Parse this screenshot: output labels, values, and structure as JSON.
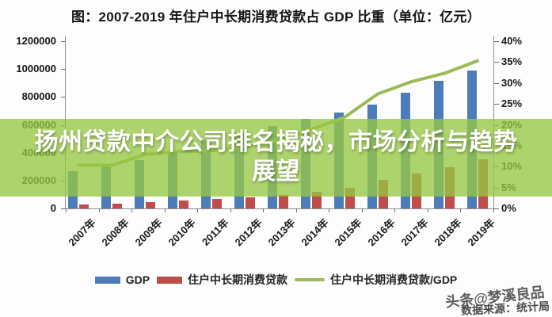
{
  "title": "图：2007-2019 年住户中长期消费贷款占 GDP 比重（单位：亿元）",
  "overlay": {
    "headline": "扬州贷款中介公司排名揭秘，市场分析与趋势展望",
    "lines": [
      "扬州贷款中介公司排名揭秘，市场分析与趋势",
      "展望"
    ],
    "background": "#96c743",
    "text_color": "#ffffff"
  },
  "watermark": "头条@梦溪良品",
  "source": "数据来源：统计局",
  "chart_data": {
    "type": "bar",
    "subtype": "bar-line-combo",
    "title": "图：2007-2019 年住户中长期消费贷款占 GDP 比重（单位：亿元）",
    "categories": [
      "2007年",
      "2008年",
      "2009年",
      "2010年",
      "2011年",
      "2012年",
      "2013年",
      "2014年",
      "2015年",
      "2016年",
      "2017年",
      "2018年",
      "2019年"
    ],
    "series": [
      {
        "name": "GDP",
        "type": "bar",
        "axis": "left",
        "color": "#4d7db9",
        "values": [
          270000,
          319000,
          349000,
          411000,
          487000,
          539000,
          593000,
          644000,
          688000,
          745000,
          831000,
          917000,
          991000
        ]
      },
      {
        "name": "住户中长期消费贷款",
        "type": "bar",
        "axis": "left",
        "color": "#bf4e4b",
        "values": [
          28000,
          33000,
          45000,
          56000,
          67000,
          79000,
          97000,
          122000,
          150000,
          204000,
          252000,
          296000,
          350000
        ]
      },
      {
        "name": "住户中长期消费贷款/GDP",
        "type": "line",
        "axis": "right",
        "color": "#9cba58",
        "values": [
          10.4,
          10.3,
          12.9,
          13.6,
          13.8,
          14.7,
          16.4,
          18.9,
          21.8,
          27.4,
          30.3,
          32.3,
          35.3
        ]
      }
    ],
    "left_axis": {
      "min": 0,
      "max": 1200000,
      "step": 200000,
      "tick_values": [
        0,
        200000,
        400000,
        600000,
        800000,
        1000000,
        1200000
      ],
      "tick_labels": [
        "0",
        "200000",
        "400000",
        "600000",
        "800000",
        "1000000",
        "1200000"
      ]
    },
    "right_axis": {
      "min": 0,
      "max": 40,
      "step": 5,
      "tick_values": [
        0,
        5,
        10,
        15,
        20,
        25,
        30,
        35,
        40
      ],
      "tick_labels": [
        "0%",
        "5%",
        "10%",
        "15%",
        "20%",
        "25%",
        "30%",
        "35%",
        "40%"
      ]
    },
    "legend_position": "bottom",
    "grid": false
  }
}
